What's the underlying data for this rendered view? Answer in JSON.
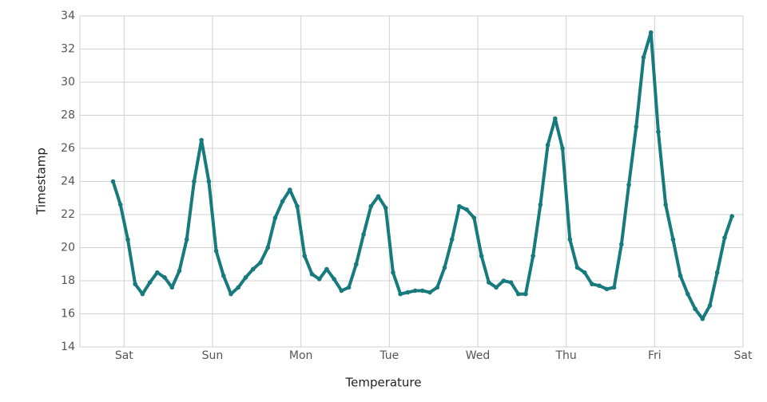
{
  "chart_data": {
    "type": "line",
    "x_label": "Temperature",
    "y_label": "Timestamp",
    "x": [
      -3,
      -1,
      1,
      3,
      5,
      7,
      9,
      11,
      13,
      15,
      17,
      19,
      21,
      23,
      25,
      27,
      29,
      31,
      33,
      35,
      37,
      39,
      41,
      43,
      45,
      47,
      49,
      51,
      53,
      55,
      57,
      59,
      61,
      63,
      65,
      67,
      69,
      71,
      73,
      75,
      77,
      79,
      81,
      83,
      85,
      87,
      89,
      91,
      93,
      95,
      97,
      99,
      101,
      103,
      105,
      107,
      109,
      111,
      113,
      115,
      117,
      119,
      121,
      123,
      125,
      127,
      129,
      131,
      133,
      135,
      137,
      139,
      141,
      143,
      145,
      147,
      149,
      151,
      153,
      155,
      157,
      159,
      161,
      163,
      165
    ],
    "series": [
      {
        "name": "Temperature",
        "color": "#177a7d",
        "values": [
          24.0,
          22.6,
          20.5,
          17.8,
          17.2,
          17.9,
          18.5,
          18.2,
          17.6,
          18.6,
          20.5,
          24.0,
          26.5,
          24.0,
          19.8,
          18.3,
          17.2,
          17.6,
          18.2,
          18.7,
          19.1,
          20.0,
          21.8,
          22.8,
          23.5,
          22.5,
          19.5,
          18.4,
          18.1,
          18.7,
          18.1,
          17.4,
          17.6,
          19.0,
          20.8,
          22.5,
          23.1,
          22.4,
          18.5,
          17.2,
          17.3,
          17.4,
          17.4,
          17.3,
          17.6,
          18.8,
          20.5,
          22.5,
          22.3,
          21.8,
          19.5,
          17.9,
          17.6,
          18.0,
          17.9,
          17.2,
          17.2,
          19.5,
          22.6,
          26.2,
          27.8,
          26.0,
          20.5,
          18.8,
          18.5,
          17.8,
          17.7,
          17.5,
          17.6,
          20.2,
          23.8,
          27.3,
          31.5,
          33.0,
          27.0,
          22.6,
          20.5,
          18.3,
          17.2,
          16.3,
          15.7,
          16.5,
          18.5,
          20.6,
          21.9
        ]
      }
    ],
    "xlim": [
      -12,
      168
    ],
    "xticks": [
      {
        "value": 0,
        "label": "Sat"
      },
      {
        "value": 24,
        "label": "Sun"
      },
      {
        "value": 48,
        "label": "Mon"
      },
      {
        "value": 72,
        "label": "Tue"
      },
      {
        "value": 96,
        "label": "Wed"
      },
      {
        "value": 120,
        "label": "Thu"
      },
      {
        "value": 144,
        "label": "Fri"
      },
      {
        "value": 168,
        "label": "Sat"
      }
    ],
    "ylim": [
      14,
      34
    ],
    "yticks": [
      14,
      16,
      18,
      20,
      22,
      24,
      26,
      28,
      30,
      32,
      34
    ],
    "grid": true
  }
}
